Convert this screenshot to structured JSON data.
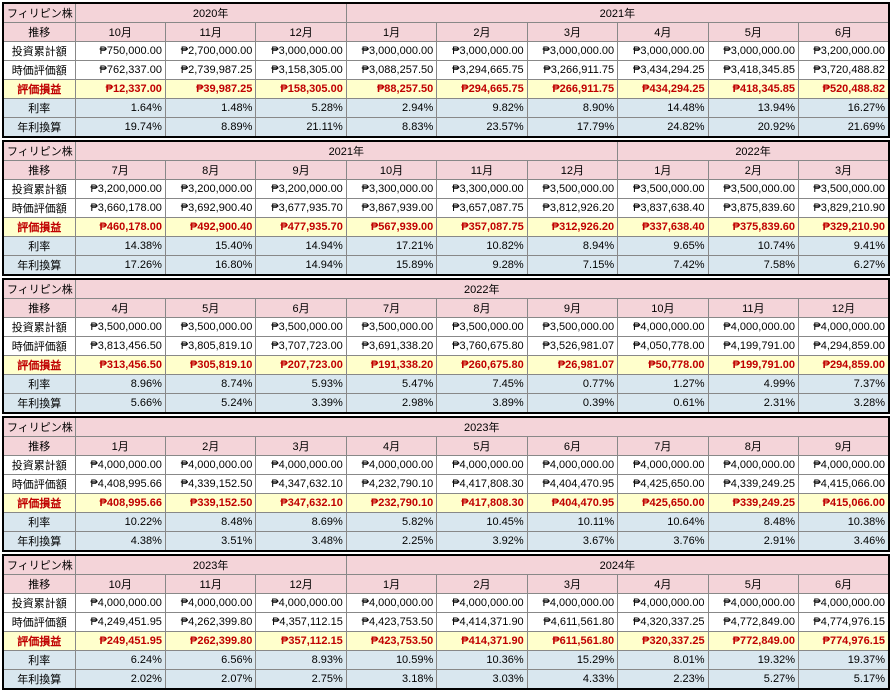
{
  "labels": {
    "stock": "フィリピン株",
    "trend": "推移",
    "cum": "投資累計額",
    "mv": "時価評価額",
    "gain": "評価損益",
    "rate": "利率",
    "annual": "年利換算"
  },
  "blocks": [
    {
      "yearSpans": [
        {
          "label": "2020年",
          "cols": 3
        },
        {
          "label": "2021年",
          "cols": 6
        }
      ],
      "months": [
        "10月",
        "11月",
        "12月",
        "1月",
        "2月",
        "3月",
        "4月",
        "5月",
        "6月"
      ],
      "rows": {
        "cum": [
          "₱750,000.00",
          "₱2,700,000.00",
          "₱3,000,000.00",
          "₱3,000,000.00",
          "₱3,000,000.00",
          "₱3,000,000.00",
          "₱3,000,000.00",
          "₱3,000,000.00",
          "₱3,200,000.00"
        ],
        "mv": [
          "₱762,337.00",
          "₱2,739,987.25",
          "₱3,158,305.00",
          "₱3,088,257.50",
          "₱3,294,665.75",
          "₱3,266,911.75",
          "₱3,434,294.25",
          "₱3,418,345.85",
          "₱3,720,488.82"
        ],
        "gain": [
          "₱12,337.00",
          "₱39,987.25",
          "₱158,305.00",
          "₱88,257.50",
          "₱294,665.75",
          "₱266,911.75",
          "₱434,294.25",
          "₱418,345.85",
          "₱520,488.82"
        ],
        "rate": [
          "1.64%",
          "1.48%",
          "5.28%",
          "2.94%",
          "9.82%",
          "8.90%",
          "14.48%",
          "13.94%",
          "16.27%"
        ],
        "annual": [
          "19.74%",
          "8.89%",
          "21.11%",
          "8.83%",
          "23.57%",
          "17.79%",
          "24.82%",
          "20.92%",
          "21.69%"
        ]
      }
    },
    {
      "yearSpans": [
        {
          "label": "2021年",
          "cols": 6
        },
        {
          "label": "2022年",
          "cols": 3
        }
      ],
      "months": [
        "7月",
        "8月",
        "9月",
        "10月",
        "11月",
        "12月",
        "1月",
        "2月",
        "3月"
      ],
      "rows": {
        "cum": [
          "₱3,200,000.00",
          "₱3,200,000.00",
          "₱3,200,000.00",
          "₱3,300,000.00",
          "₱3,300,000.00",
          "₱3,500,000.00",
          "₱3,500,000.00",
          "₱3,500,000.00",
          "₱3,500,000.00"
        ],
        "mv": [
          "₱3,660,178.00",
          "₱3,692,900.40",
          "₱3,677,935.70",
          "₱3,867,939.00",
          "₱3,657,087.75",
          "₱3,812,926.20",
          "₱3,837,638.40",
          "₱3,875,839.60",
          "₱3,829,210.90"
        ],
        "gain": [
          "₱460,178.00",
          "₱492,900.40",
          "₱477,935.70",
          "₱567,939.00",
          "₱357,087.75",
          "₱312,926.20",
          "₱337,638.40",
          "₱375,839.60",
          "₱329,210.90"
        ],
        "rate": [
          "14.38%",
          "15.40%",
          "14.94%",
          "17.21%",
          "10.82%",
          "8.94%",
          "9.65%",
          "10.74%",
          "9.41%"
        ],
        "annual": [
          "17.26%",
          "16.80%",
          "14.94%",
          "15.89%",
          "9.28%",
          "7.15%",
          "7.42%",
          "7.58%",
          "6.27%"
        ]
      }
    },
    {
      "yearSpans": [
        {
          "label": "2022年",
          "cols": 9
        }
      ],
      "months": [
        "4月",
        "5月",
        "6月",
        "7月",
        "8月",
        "9月",
        "10月",
        "11月",
        "12月"
      ],
      "rows": {
        "cum": [
          "₱3,500,000.00",
          "₱3,500,000.00",
          "₱3,500,000.00",
          "₱3,500,000.00",
          "₱3,500,000.00",
          "₱3,500,000.00",
          "₱4,000,000.00",
          "₱4,000,000.00",
          "₱4,000,000.00"
        ],
        "mv": [
          "₱3,813,456.50",
          "₱3,805,819.10",
          "₱3,707,723.00",
          "₱3,691,338.20",
          "₱3,760,675.80",
          "₱3,526,981.07",
          "₱4,050,778.00",
          "₱4,199,791.00",
          "₱4,294,859.00"
        ],
        "gain": [
          "₱313,456.50",
          "₱305,819.10",
          "₱207,723.00",
          "₱191,338.20",
          "₱260,675.80",
          "₱26,981.07",
          "₱50,778.00",
          "₱199,791.00",
          "₱294,859.00"
        ],
        "rate": [
          "8.96%",
          "8.74%",
          "5.93%",
          "5.47%",
          "7.45%",
          "0.77%",
          "1.27%",
          "4.99%",
          "7.37%"
        ],
        "annual": [
          "5.66%",
          "5.24%",
          "3.39%",
          "2.98%",
          "3.89%",
          "0.39%",
          "0.61%",
          "2.31%",
          "3.28%"
        ]
      }
    },
    {
      "yearSpans": [
        {
          "label": "2023年",
          "cols": 9
        }
      ],
      "months": [
        "1月",
        "2月",
        "3月",
        "4月",
        "5月",
        "6月",
        "7月",
        "8月",
        "9月"
      ],
      "rows": {
        "cum": [
          "₱4,000,000.00",
          "₱4,000,000.00",
          "₱4,000,000.00",
          "₱4,000,000.00",
          "₱4,000,000.00",
          "₱4,000,000.00",
          "₱4,000,000.00",
          "₱4,000,000.00",
          "₱4,000,000.00"
        ],
        "mv": [
          "₱4,408,995.66",
          "₱4,339,152.50",
          "₱4,347,632.10",
          "₱4,232,790.10",
          "₱4,417,808.30",
          "₱4,404,470.95",
          "₱4,425,650.00",
          "₱4,339,249.25",
          "₱4,415,066.00"
        ],
        "gain": [
          "₱408,995.66",
          "₱339,152.50",
          "₱347,632.10",
          "₱232,790.10",
          "₱417,808.30",
          "₱404,470.95",
          "₱425,650.00",
          "₱339,249.25",
          "₱415,066.00"
        ],
        "rate": [
          "10.22%",
          "8.48%",
          "8.69%",
          "5.82%",
          "10.45%",
          "10.11%",
          "10.64%",
          "8.48%",
          "10.38%"
        ],
        "annual": [
          "4.38%",
          "3.51%",
          "3.48%",
          "2.25%",
          "3.92%",
          "3.67%",
          "3.76%",
          "2.91%",
          "3.46%"
        ]
      }
    },
    {
      "yearSpans": [
        {
          "label": "2023年",
          "cols": 3
        },
        {
          "label": "2024年",
          "cols": 6
        }
      ],
      "months": [
        "10月",
        "11月",
        "12月",
        "1月",
        "2月",
        "3月",
        "4月",
        "5月",
        "6月"
      ],
      "rows": {
        "cum": [
          "₱4,000,000.00",
          "₱4,000,000.00",
          "₱4,000,000.00",
          "₱4,000,000.00",
          "₱4,000,000.00",
          "₱4,000,000.00",
          "₱4,000,000.00",
          "₱4,000,000.00",
          "₱4,000,000.00"
        ],
        "mv": [
          "₱4,249,451.95",
          "₱4,262,399.80",
          "₱4,357,112.15",
          "₱4,423,753.50",
          "₱4,414,371.90",
          "₱4,611,561.80",
          "₱4,320,337.25",
          "₱4,772,849.00",
          "₱4,774,976.15"
        ],
        "gain": [
          "₱249,451.95",
          "₱262,399.80",
          "₱357,112.15",
          "₱423,753.50",
          "₱414,371.90",
          "₱611,561.80",
          "₱320,337.25",
          "₱772,849.00",
          "₱774,976.15"
        ],
        "rate": [
          "6.24%",
          "6.56%",
          "8.93%",
          "10.59%",
          "10.36%",
          "15.29%",
          "8.01%",
          "19.32%",
          "19.37%"
        ],
        "annual": [
          "2.02%",
          "2.07%",
          "2.75%",
          "3.18%",
          "3.03%",
          "4.33%",
          "2.23%",
          "5.27%",
          "5.17%"
        ]
      }
    }
  ]
}
